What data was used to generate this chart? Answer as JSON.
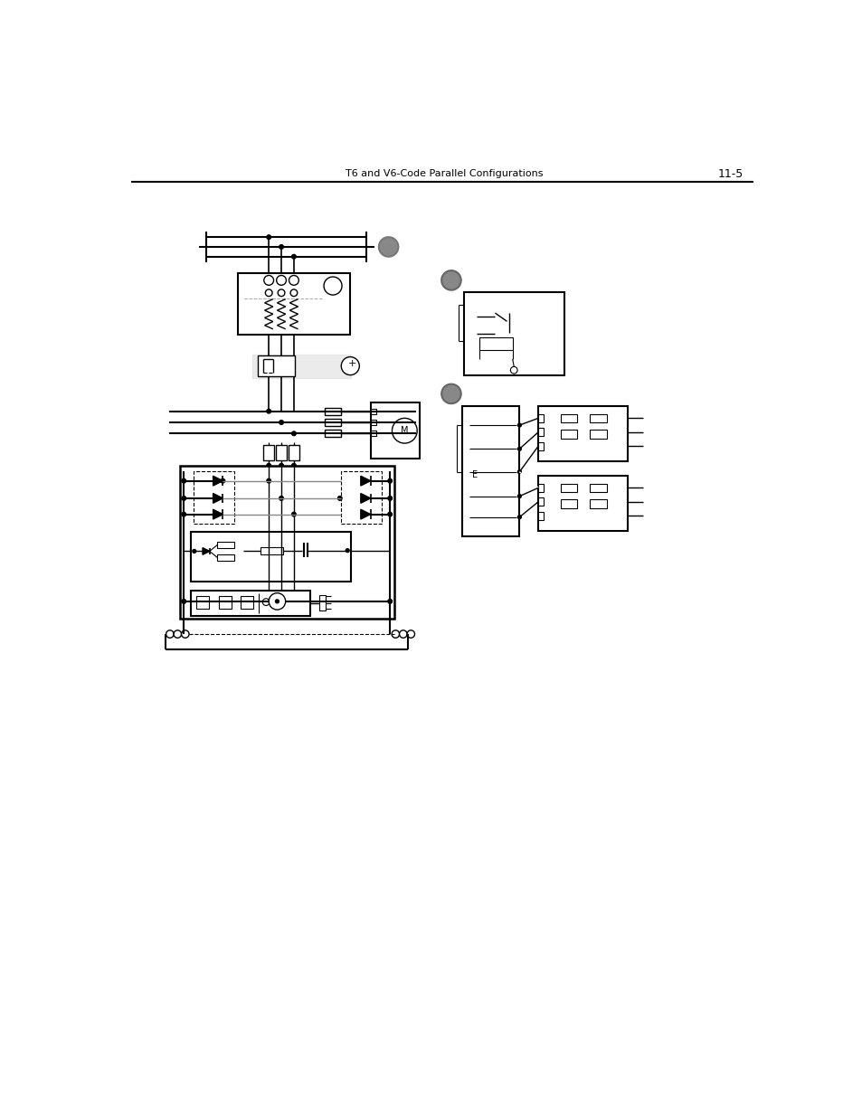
{
  "page_title": "T6 and V6-Code Parallel Configurations",
  "page_number": "11-5",
  "bg_color": "#ffffff",
  "fig_width": 9.54,
  "fig_height": 12.35,
  "dpi": 100
}
